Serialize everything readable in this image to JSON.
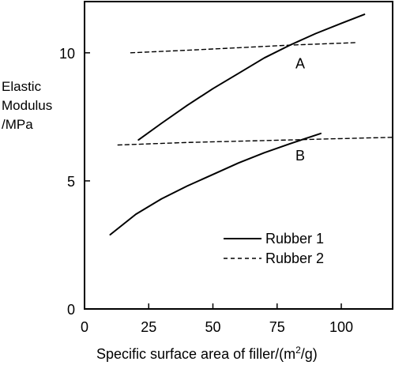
{
  "chart_data": {
    "type": "line",
    "title": "",
    "ylabel_lines": [
      "Elastic",
      "Modulus",
      "/MPa"
    ],
    "xlabel": {
      "prefix": "Specific surface area of filler/(m",
      "superscript": "2",
      "suffix": "/g)"
    },
    "xlim": [
      0,
      120
    ],
    "ylim": [
      0,
      12
    ],
    "xticks": [
      "0",
      "25",
      "50",
      "75",
      "100"
    ],
    "xtick_values": [
      0,
      25,
      50,
      75,
      100
    ],
    "yticks": [
      "0",
      "5",
      "10"
    ],
    "ytick_values": [
      0,
      5,
      10
    ],
    "grid": false,
    "legend_position": "bottom-right",
    "legend": [
      {
        "label": "Rubber 1",
        "style": "solid"
      },
      {
        "label": "Rubber 2",
        "style": "dashed"
      }
    ],
    "series": [
      {
        "name": "Rubber 1",
        "group": "A",
        "style": "solid",
        "x": [
          21,
          30,
          40,
          50,
          60,
          70,
          80,
          90,
          100,
          109
        ],
        "y": [
          6.6,
          7.25,
          7.95,
          8.6,
          9.2,
          9.8,
          10.3,
          10.75,
          11.15,
          11.5
        ]
      },
      {
        "name": "Rubber 1",
        "group": "B",
        "style": "solid",
        "x": [
          10,
          20,
          30,
          40,
          50,
          60,
          70,
          80,
          92
        ],
        "y": [
          2.9,
          3.7,
          4.3,
          4.8,
          5.25,
          5.7,
          6.1,
          6.45,
          6.85
        ]
      },
      {
        "name": "Rubber 2",
        "group": "A",
        "style": "dashed",
        "x": [
          18,
          40,
          60,
          80,
          106
        ],
        "y": [
          10.0,
          10.1,
          10.2,
          10.3,
          10.4
        ]
      },
      {
        "name": "Rubber 2",
        "group": "B",
        "style": "dashed",
        "x": [
          13,
          40,
          60,
          80,
          100,
          120
        ],
        "y": [
          6.4,
          6.5,
          6.55,
          6.6,
          6.65,
          6.7
        ]
      }
    ],
    "annotations": [
      {
        "text": "A",
        "x": 84,
        "y": 9.4
      },
      {
        "text": "B",
        "x": 84,
        "y": 5.8
      }
    ]
  }
}
